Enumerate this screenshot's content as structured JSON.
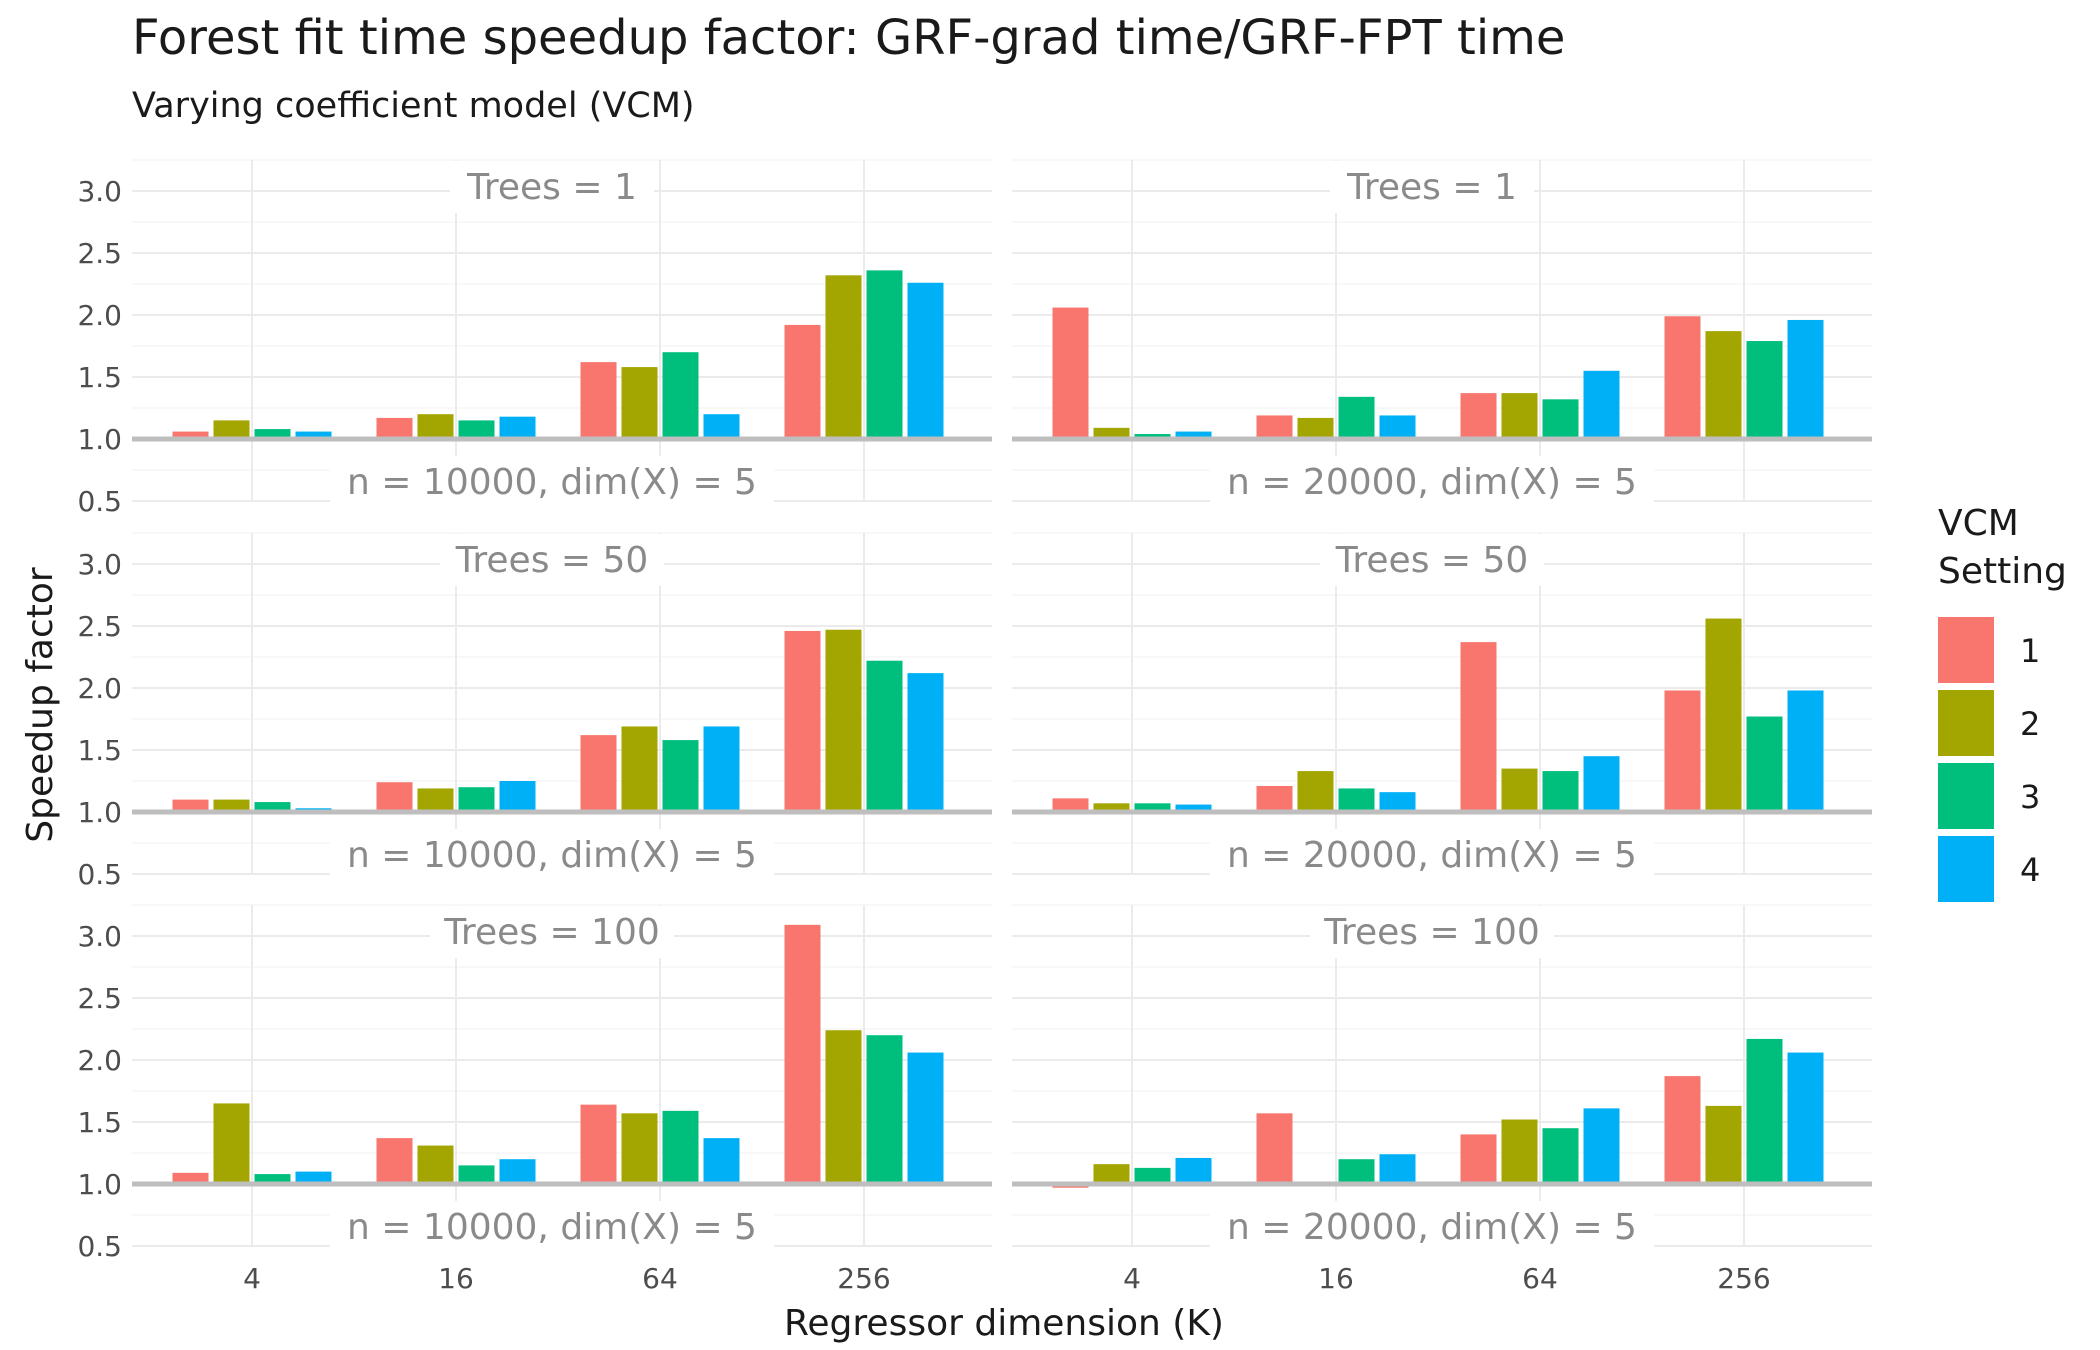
{
  "chart_data": {
    "type": "bar",
    "title": "Forest fit time speedup factor: GRF-grad time/GRF-FPT time",
    "subtitle": "Varying coefficient model (VCM)",
    "xlabel": "Regressor dimension (K)",
    "ylabel": "Speedup factor",
    "ylim": [
      0.5,
      3.25
    ],
    "baseline": 1.0,
    "y_ticks": [
      "0.5",
      "1.0",
      "1.5",
      "2.0",
      "2.5",
      "3.0"
    ],
    "categories": [
      "4",
      "16",
      "64",
      "256"
    ],
    "legend": {
      "title": [
        "VCM",
        "Setting"
      ],
      "entries": [
        "1",
        "2",
        "3",
        "4"
      ],
      "position": "right"
    },
    "colors": [
      "#F8766D",
      "#A3A500",
      "#00BF7D",
      "#00B0F6"
    ],
    "panels": [
      {
        "top_label": "Trees = 1",
        "bottom_label": "n = 10000, dim(X) = 5",
        "series": [
          {
            "name": "1",
            "values": [
              1.06,
              1.17,
              1.62,
              1.92
            ]
          },
          {
            "name": "2",
            "values": [
              1.15,
              1.2,
              1.58,
              2.32
            ]
          },
          {
            "name": "3",
            "values": [
              1.08,
              1.15,
              1.7,
              2.36
            ]
          },
          {
            "name": "4",
            "values": [
              1.06,
              1.18,
              1.2,
              2.26
            ]
          }
        ]
      },
      {
        "top_label": "Trees = 1",
        "bottom_label": "n = 20000, dim(X) = 5",
        "series": [
          {
            "name": "1",
            "values": [
              2.06,
              1.19,
              1.37,
              1.99
            ]
          },
          {
            "name": "2",
            "values": [
              1.09,
              1.17,
              1.37,
              1.87
            ]
          },
          {
            "name": "3",
            "values": [
              1.04,
              1.34,
              1.32,
              1.79
            ]
          },
          {
            "name": "4",
            "values": [
              1.06,
              1.19,
              1.55,
              1.96
            ]
          }
        ]
      },
      {
        "top_label": "Trees = 50",
        "bottom_label": "n = 10000, dim(X) = 5",
        "series": [
          {
            "name": "1",
            "values": [
              1.1,
              1.24,
              1.62,
              2.46
            ]
          },
          {
            "name": "2",
            "values": [
              1.1,
              1.19,
              1.69,
              2.47
            ]
          },
          {
            "name": "3",
            "values": [
              1.08,
              1.2,
              1.58,
              2.22
            ]
          },
          {
            "name": "4",
            "values": [
              1.03,
              1.25,
              1.69,
              2.12
            ]
          }
        ]
      },
      {
        "top_label": "Trees = 50",
        "bottom_label": "n = 20000, dim(X) = 5",
        "series": [
          {
            "name": "1",
            "values": [
              1.11,
              1.21,
              2.37,
              1.98
            ]
          },
          {
            "name": "2",
            "values": [
              1.07,
              1.33,
              1.35,
              2.56
            ]
          },
          {
            "name": "3",
            "values": [
              1.07,
              1.19,
              1.33,
              1.77
            ]
          },
          {
            "name": "4",
            "values": [
              1.06,
              1.16,
              1.45,
              1.98
            ]
          }
        ]
      },
      {
        "top_label": "Trees = 100",
        "bottom_label": "n = 10000, dim(X) = 5",
        "series": [
          {
            "name": "1",
            "values": [
              1.09,
              1.37,
              1.64,
              3.09
            ]
          },
          {
            "name": "2",
            "values": [
              1.65,
              1.31,
              1.57,
              2.24
            ]
          },
          {
            "name": "3",
            "values": [
              1.08,
              1.15,
              1.59,
              2.2
            ]
          },
          {
            "name": "4",
            "values": [
              1.1,
              1.2,
              1.37,
              2.06
            ]
          }
        ]
      },
      {
        "top_label": "Trees = 100",
        "bottom_label": "n = 20000, dim(X) = 5",
        "series": [
          {
            "name": "1",
            "values": [
              0.97,
              1.57,
              1.4,
              1.87
            ]
          },
          {
            "name": "2",
            "values": [
              1.16,
              1.0,
              1.52,
              1.63
            ]
          },
          {
            "name": "3",
            "values": [
              1.13,
              1.2,
              1.45,
              2.17
            ]
          },
          {
            "name": "4",
            "values": [
              1.21,
              1.24,
              1.61,
              2.06
            ]
          }
        ]
      }
    ]
  }
}
